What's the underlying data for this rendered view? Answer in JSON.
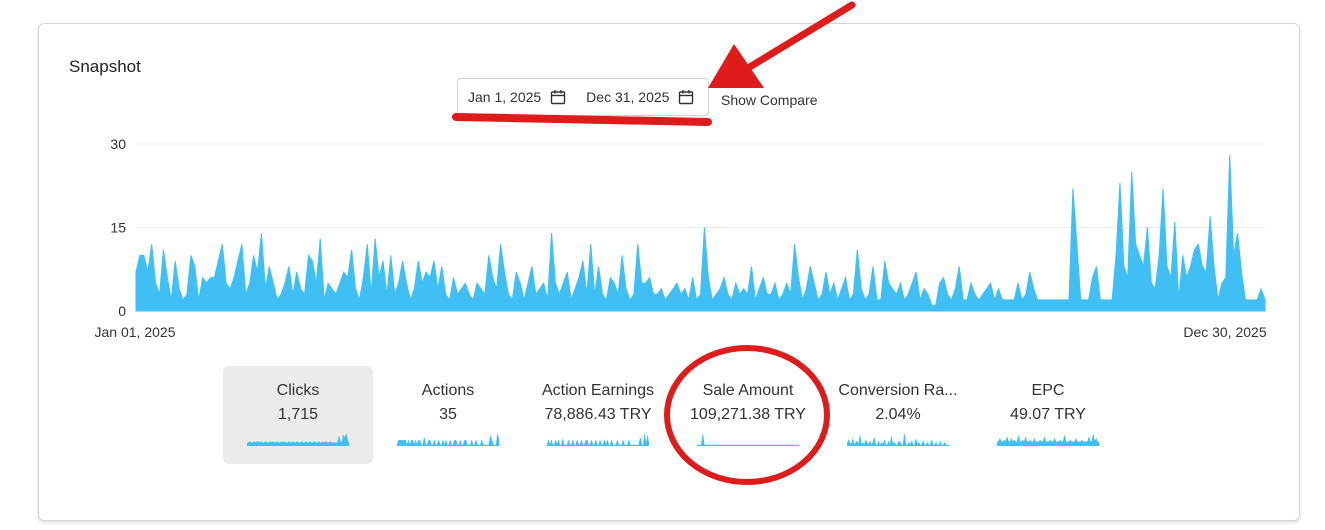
{
  "card": {
    "title": "Snapshot"
  },
  "date_range": {
    "start": "Jan 1, 2025",
    "end": "Dec 31, 2025",
    "show_compare": "Show Compare"
  },
  "chart_data": {
    "type": "area",
    "x_start_label": "Jan 01, 2025",
    "x_end_label": "Dec 30, 2025",
    "yticks": [
      "30",
      "15",
      "0"
    ],
    "ylim": [
      0,
      30
    ],
    "grid": true,
    "color": "#40bff5",
    "values": [
      7,
      10,
      10,
      7,
      12,
      5,
      3,
      11,
      6,
      2,
      9,
      4,
      2,
      3,
      10,
      8,
      2,
      6,
      5,
      6,
      6,
      9,
      12,
      5,
      4,
      6,
      9,
      12,
      3,
      5,
      10,
      7,
      14,
      4,
      8,
      5,
      2,
      3,
      5,
      8,
      3,
      7,
      4,
      3,
      10,
      9,
      5,
      13,
      2,
      5,
      4,
      3,
      5,
      7,
      6,
      11,
      4,
      2,
      6,
      12,
      3,
      13,
      6,
      9,
      3,
      10,
      3,
      5,
      9,
      5,
      2,
      4,
      9,
      5,
      7,
      6,
      9,
      4,
      8,
      3,
      2,
      6,
      3,
      4,
      5,
      3,
      2,
      5,
      4,
      3,
      10,
      6,
      4,
      12,
      7,
      3,
      2,
      7,
      5,
      2,
      5,
      8,
      3,
      4,
      5,
      2,
      14,
      5,
      3,
      5,
      7,
      2,
      4,
      6,
      9,
      3,
      12,
      3,
      8,
      3,
      2,
      6,
      5,
      3,
      10,
      4,
      2,
      3,
      12,
      5,
      5,
      6,
      3,
      3,
      4,
      2,
      3,
      4,
      5,
      3,
      4,
      2,
      6,
      2,
      3,
      15,
      6,
      2,
      3,
      4,
      6,
      3,
      2,
      5,
      3,
      4,
      3,
      8,
      2,
      4,
      6,
      3,
      3,
      5,
      2,
      3,
      5,
      3,
      12,
      6,
      2,
      4,
      8,
      5,
      2,
      3,
      7,
      3,
      5,
      2,
      4,
      6,
      2,
      3,
      11,
      4,
      2,
      3,
      8,
      2,
      2,
      9,
      5,
      4,
      3,
      5,
      2,
      3,
      5,
      7,
      2,
      4,
      3,
      1,
      1,
      5,
      6,
      3,
      2,
      4,
      8,
      2,
      2,
      5,
      3,
      2,
      3,
      4,
      5,
      2,
      4,
      2,
      2,
      2,
      2,
      5,
      2,
      3,
      7,
      4,
      2,
      2,
      2,
      2,
      2,
      2,
      2,
      2,
      2,
      22,
      12,
      2,
      2,
      2,
      6,
      8,
      2,
      2,
      2,
      2,
      10,
      23,
      8,
      6,
      25,
      12,
      10,
      8,
      15,
      5,
      4,
      10,
      22,
      8,
      6,
      16,
      2,
      10,
      6,
      8,
      11,
      12,
      8,
      7,
      17,
      8,
      2,
      5,
      6,
      28,
      10,
      14,
      7,
      2,
      2,
      2,
      2,
      4,
      2
    ],
    "metrics": [
      {
        "label": "Clicks",
        "value": "1,715",
        "selected": true,
        "spark": [
          2,
          2,
          3,
          2,
          2,
          3,
          2,
          3,
          3,
          2,
          3,
          2,
          2,
          3,
          2,
          2,
          3,
          2,
          3,
          2,
          2,
          3,
          2,
          2,
          3,
          2,
          3,
          2,
          2,
          3,
          2,
          2,
          3,
          2,
          2,
          3,
          2,
          2,
          3,
          2,
          2,
          3,
          2,
          2,
          3,
          2,
          2,
          3,
          2,
          2,
          3,
          2,
          2,
          3,
          2,
          3,
          2,
          2,
          3,
          2,
          2,
          2,
          2,
          2,
          8,
          3,
          2,
          9,
          6,
          10,
          4,
          2
        ]
      },
      {
        "label": "Actions",
        "value": "35",
        "selected": false,
        "spark": [
          0,
          5,
          5,
          5,
          5,
          5,
          5,
          0,
          5,
          0,
          5,
          5,
          0,
          5,
          0,
          5,
          5,
          0,
          0,
          8,
          0,
          0,
          5,
          5,
          0,
          0,
          5,
          0,
          0,
          5,
          0,
          0,
          5,
          0,
          5,
          0,
          0,
          5,
          0,
          0,
          5,
          5,
          0,
          0,
          5,
          0,
          0,
          5,
          5,
          0,
          0,
          0,
          5,
          0,
          0,
          5,
          0,
          0,
          0,
          5,
          0,
          0,
          0,
          0,
          0,
          10,
          5,
          0,
          0,
          0,
          12,
          5
        ]
      },
      {
        "label": "Action Earnings",
        "value": "78,886.43 TRY",
        "selected": false,
        "spark": [
          0,
          5,
          0,
          5,
          0,
          0,
          5,
          0,
          5,
          0,
          0,
          6,
          0,
          0,
          0,
          5,
          0,
          0,
          5,
          0,
          0,
          5,
          0,
          0,
          5,
          0,
          0,
          5,
          5,
          0,
          0,
          5,
          0,
          0,
          5,
          0,
          0,
          5,
          0,
          0,
          5,
          0,
          5,
          0,
          0,
          5,
          0,
          0,
          0,
          5,
          0,
          0,
          0,
          5,
          0,
          0,
          0,
          5,
          0,
          0,
          0,
          0,
          0,
          0,
          0,
          8,
          0,
          0,
          12,
          0,
          10,
          0
        ]
      },
      {
        "label": "Sale Amount",
        "value": "109,271.38 TRY",
        "selected": false,
        "spark": [
          0,
          0,
          0,
          0,
          10,
          0,
          0,
          0,
          0,
          0,
          0,
          0,
          0,
          0,
          0,
          0,
          0,
          0,
          0,
          0,
          0,
          0,
          0,
          0,
          0,
          0,
          0,
          0,
          0,
          0,
          0,
          0,
          0,
          0,
          0,
          0,
          0,
          0,
          0,
          0,
          0,
          0,
          0,
          0,
          0,
          0,
          0,
          0,
          0,
          0,
          0,
          0,
          0,
          0,
          0,
          0,
          0,
          0,
          0,
          0,
          0,
          0,
          0,
          0,
          0,
          0,
          0,
          0,
          0,
          0,
          0,
          0
        ]
      },
      {
        "label": "Conversion Ra...",
        "value": "2.04%",
        "selected": false,
        "spark": [
          0,
          4,
          2,
          0,
          5,
          0,
          2,
          3,
          0,
          8,
          0,
          2,
          0,
          4,
          2,
          0,
          3,
          0,
          2,
          6,
          0,
          0,
          3,
          0,
          2,
          0,
          4,
          0,
          0,
          3,
          0,
          7,
          0,
          2,
          0,
          0,
          3,
          2,
          0,
          0,
          9,
          0,
          0,
          2,
          0,
          3,
          0,
          0,
          5,
          0,
          2,
          0,
          0,
          3,
          0,
          0,
          2,
          0,
          0,
          4,
          0,
          0,
          2,
          0,
          0,
          3,
          0,
          0,
          2,
          0,
          0,
          0
        ]
      },
      {
        "label": "EPC",
        "value": "49.07 TRY",
        "selected": false,
        "spark": [
          2,
          2,
          4,
          2,
          2,
          3,
          2,
          5,
          2,
          2,
          4,
          2,
          3,
          2,
          2,
          6,
          2,
          2,
          3,
          2,
          5,
          2,
          2,
          3,
          2,
          2,
          4,
          2,
          2,
          2,
          3,
          2,
          2,
          5,
          2,
          2,
          2,
          3,
          2,
          2,
          4,
          2,
          2,
          2,
          3,
          2,
          2,
          6,
          2,
          2,
          2,
          3,
          2,
          2,
          2,
          4,
          2,
          2,
          2,
          3,
          2,
          2,
          2,
          2,
          5,
          2,
          2,
          7,
          2,
          4,
          2,
          2
        ]
      }
    ]
  },
  "annotation": {
    "arrow_color": "#e01b1b",
    "circle_color": "#e01b1b"
  }
}
